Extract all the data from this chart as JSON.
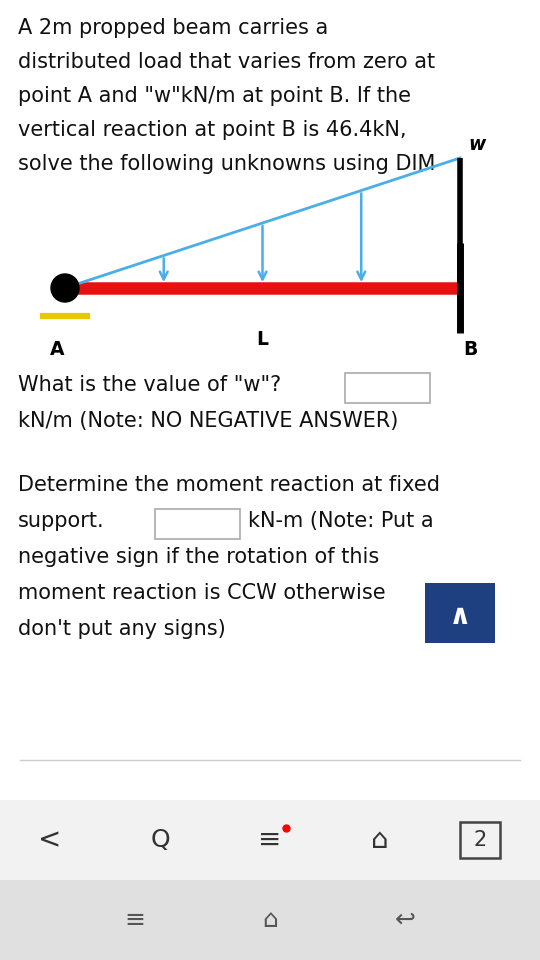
{
  "bg_white": "#ffffff",
  "bg_light": "#ebebeb",
  "bg_nav": "#f2f2f2",
  "bg_sys": "#e0e0e0",
  "beam_color": "#e81010",
  "beam_lw": 9,
  "load_color": "#4aaee8",
  "load_lw": 2.0,
  "black": "#000000",
  "yellow": "#e8c800",
  "button_color": "#1e4080",
  "text_color": "#111111",
  "box_edge": "#aaaaaa",
  "sep_color": "#cccccc",
  "title_lines": [
    "A 2m propped beam carries a",
    "distributed load that varies from zero at",
    "point A and \"w\"kN/m at point B. If the",
    "vertical reaction at point B is 46.4kN,",
    "solve the following unknowns using DIM"
  ],
  "title_fontsize": 15.0,
  "q_fontsize": 15.0,
  "label_fontsize": 13.5,
  "nav_fontsize": 16,
  "sys_fontsize": 15
}
